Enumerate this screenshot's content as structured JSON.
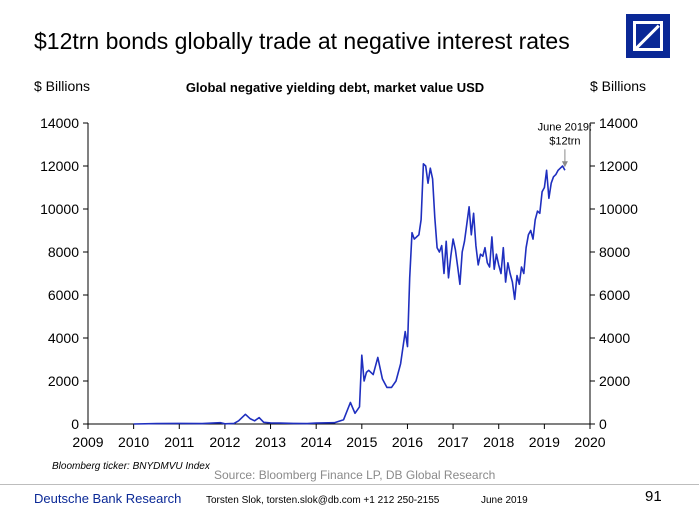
{
  "slide": {
    "title": "$12trn bonds globally trade at negative interest rates",
    "unit_left": "$ Billions",
    "unit_right": "$ Billions",
    "ticker_note": "Bloomberg ticker: BNYDMVU Index",
    "source": "Source: Bloomberg Finance LP, DB Global Research",
    "brand_color": "#0a2896",
    "logo_icon": "deutsche-bank-logo"
  },
  "footer": {
    "brand": "Deutsche Bank Research",
    "contact": "Torsten Slok, torsten.slok@db.com  +1 212 250-2155",
    "date": "June 2019",
    "page": "91"
  },
  "chart_data": {
    "type": "line",
    "title": "Global negative yielding debt, market value USD",
    "xlabel": "",
    "ylabel": "$ Billions",
    "xlim": [
      2009,
      2020
    ],
    "ylim": [
      0,
      14000
    ],
    "x_ticks": [
      "2009",
      "2010",
      "2011",
      "2012",
      "2013",
      "2014",
      "2015",
      "2016",
      "2017",
      "2018",
      "2019",
      "2020"
    ],
    "y_ticks": [
      "0",
      "2000",
      "4000",
      "6000",
      "8000",
      "10000",
      "12000",
      "14000"
    ],
    "grid": false,
    "line_color": "#1f2fbf",
    "annotation": {
      "text_line1": "June 2019:",
      "text_line2": "$12trn",
      "x": 2019.45,
      "y": 11800
    },
    "series": [
      {
        "x": [
          2010.0,
          2010.5,
          2011.0,
          2011.5,
          2011.9,
          2012.0,
          2012.2,
          2012.3,
          2012.45,
          2012.55,
          2012.65,
          2012.75,
          2012.85,
          2013.0,
          2013.2,
          2013.5,
          2013.8,
          2014.0,
          2014.4,
          2014.6,
          2014.75,
          2014.85,
          2014.95,
          2015.0,
          2015.05,
          2015.1,
          2015.15,
          2015.25,
          2015.35,
          2015.45,
          2015.55,
          2015.65,
          2015.75,
          2015.85,
          2015.95,
          2016.0,
          2016.05,
          2016.1,
          2016.15,
          2016.2,
          2016.25,
          2016.3,
          2016.35,
          2016.4,
          2016.45,
          2016.5,
          2016.55,
          2016.6,
          2016.65,
          2016.7,
          2016.75,
          2016.8,
          2016.85,
          2016.9,
          2016.95,
          2017.0,
          2017.05,
          2017.1,
          2017.15,
          2017.2,
          2017.25,
          2017.3,
          2017.35,
          2017.4,
          2017.45,
          2017.5,
          2017.55,
          2017.6,
          2017.65,
          2017.7,
          2017.75,
          2017.8,
          2017.85,
          2017.9,
          2017.95,
          2018.0,
          2018.05,
          2018.1,
          2018.15,
          2018.2,
          2018.25,
          2018.3,
          2018.35,
          2018.4,
          2018.45,
          2018.5,
          2018.55,
          2018.6,
          2018.65,
          2018.7,
          2018.75,
          2018.8,
          2018.85,
          2018.9,
          2018.95,
          2019.0,
          2019.05,
          2019.1,
          2019.15,
          2019.2,
          2019.25,
          2019.3,
          2019.35,
          2019.4,
          2019.45
        ],
        "y": [
          0,
          20,
          30,
          20,
          60,
          10,
          30,
          150,
          450,
          250,
          150,
          300,
          80,
          50,
          40,
          30,
          20,
          40,
          60,
          200,
          1000,
          500,
          800,
          3200,
          2000,
          2400,
          2500,
          2300,
          3100,
          2100,
          1700,
          1700,
          2000,
          2800,
          4300,
          3600,
          6800,
          8900,
          8600,
          8700,
          8800,
          9500,
          12100,
          12000,
          11200,
          11900,
          11400,
          9600,
          8200,
          8000,
          8300,
          7000,
          8500,
          6800,
          7800,
          8600,
          8100,
          7300,
          6500,
          8000,
          8500,
          9300,
          10100,
          8800,
          9800,
          8300,
          7400,
          7900,
          7800,
          8200,
          7500,
          7300,
          8700,
          7200,
          7900,
          7400,
          7000,
          8200,
          6600,
          7500,
          7000,
          6600,
          5800,
          6900,
          6500,
          7300,
          7000,
          8200,
          8800,
          9000,
          8600,
          9500,
          9900,
          9800,
          10800,
          11000,
          11800,
          10500,
          11200,
          11500,
          11600,
          11800,
          11900,
          12000,
          11800
        ]
      }
    ]
  }
}
